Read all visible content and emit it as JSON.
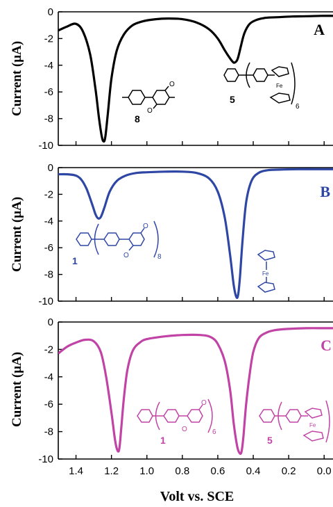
{
  "colors": {
    "A": "#000000",
    "B": "#2e46a4",
    "C": "#c043a5",
    "axis": "#000000"
  },
  "figure": {
    "xlabel": "Volt vs. SCE"
  },
  "chart_data": [
    {
      "type": "line",
      "panel_label": "A",
      "ylabel": "Current (μA)",
      "xlabel": "",
      "xlim": [
        1.5,
        -0.05
      ],
      "ylim": [
        -10,
        0
      ],
      "x_ticks": [
        "1.4",
        "1.2",
        "1.0",
        "0.8",
        "0.6",
        "0.4",
        "0.2",
        "0.0"
      ],
      "x_tick_values": [
        1.4,
        1.2,
        1.0,
        0.8,
        0.6,
        0.4,
        0.2,
        0.0
      ],
      "y_ticks": [
        "0",
        "-2",
        "-4",
        "-6",
        "-8",
        "-10"
      ],
      "y_tick_values": [
        0,
        -2,
        -4,
        -6,
        -8,
        -10
      ],
      "x": [
        1.5,
        1.45,
        1.4,
        1.36,
        1.32,
        1.29,
        1.27,
        1.255,
        1.245,
        1.235,
        1.22,
        1.2,
        1.17,
        1.13,
        1.08,
        1.02,
        0.95,
        0.88,
        0.8,
        0.72,
        0.65,
        0.6,
        0.56,
        0.53,
        0.51,
        0.495,
        0.485,
        0.47,
        0.45,
        0.42,
        0.38,
        0.33,
        0.26,
        0.18,
        0.1,
        0.02,
        -0.05
      ],
      "y": [
        -1.4,
        -1.1,
        -0.9,
        -1.5,
        -3.2,
        -5.8,
        -8.0,
        -9.3,
        -9.7,
        -9.4,
        -7.6,
        -5.0,
        -2.9,
        -1.7,
        -1.0,
        -0.7,
        -0.55,
        -0.5,
        -0.55,
        -0.8,
        -1.3,
        -2.0,
        -2.9,
        -3.5,
        -3.8,
        -3.7,
        -3.4,
        -2.6,
        -1.6,
        -0.9,
        -0.6,
        -0.45,
        -0.4,
        -0.35,
        -0.33,
        -0.3,
        -0.3
      ],
      "compounds": [
        "8",
        "5"
      ],
      "annotations": [
        "Fe",
        "6"
      ]
    },
    {
      "type": "line",
      "panel_label": "B",
      "ylabel": "Current (μA)",
      "xlabel": "",
      "xlim": [
        1.5,
        -0.05
      ],
      "ylim": [
        -10,
        0
      ],
      "x_ticks": [
        "1.4",
        "1.2",
        "1.0",
        "0.8",
        "0.6",
        "0.4",
        "0.2",
        "0.0"
      ],
      "x_tick_values": [
        1.4,
        1.2,
        1.0,
        0.8,
        0.6,
        0.4,
        0.2,
        0.0
      ],
      "y_ticks": [
        "0",
        "-2",
        "-4",
        "-6",
        "-8",
        "-10"
      ],
      "y_tick_values": [
        0,
        -2,
        -4,
        -6,
        -8,
        -10
      ],
      "x": [
        1.5,
        1.45,
        1.4,
        1.37,
        1.34,
        1.31,
        1.29,
        1.275,
        1.26,
        1.24,
        1.21,
        1.17,
        1.12,
        1.06,
        1.0,
        0.9,
        0.8,
        0.72,
        0.65,
        0.6,
        0.56,
        0.53,
        0.51,
        0.495,
        0.485,
        0.475,
        0.46,
        0.44,
        0.41,
        0.37,
        0.32,
        0.25,
        0.15,
        0.05,
        -0.05
      ],
      "y": [
        -0.5,
        -0.5,
        -0.6,
        -0.9,
        -1.6,
        -2.7,
        -3.5,
        -3.8,
        -3.7,
        -3.0,
        -1.8,
        -1.0,
        -0.6,
        -0.4,
        -0.35,
        -0.3,
        -0.3,
        -0.4,
        -0.8,
        -1.8,
        -3.8,
        -6.6,
        -8.8,
        -9.7,
        -9.5,
        -8.2,
        -5.4,
        -2.6,
        -1.0,
        -0.4,
        -0.2,
        -0.15,
        -0.12,
        -0.12,
        -0.12
      ],
      "compounds": [
        "1"
      ],
      "annotations": [
        "8",
        "Fe"
      ]
    },
    {
      "type": "line",
      "panel_label": "C",
      "ylabel": "Current (μA)",
      "xlabel": "Volt vs. SCE",
      "xlim": [
        1.5,
        -0.05
      ],
      "ylim": [
        -10,
        0
      ],
      "x_ticks": [
        "1.4",
        "1.2",
        "1.0",
        "0.8",
        "0.6",
        "0.4",
        "0.2",
        "0.0"
      ],
      "x_tick_values": [
        1.4,
        1.2,
        1.0,
        0.8,
        0.6,
        0.4,
        0.2,
        0.0
      ],
      "y_ticks": [
        "0",
        "-2",
        "-4",
        "-6",
        "-8",
        "-10"
      ],
      "y_tick_values": [
        0,
        -2,
        -4,
        -6,
        -8,
        -10
      ],
      "x": [
        1.5,
        1.45,
        1.4,
        1.35,
        1.3,
        1.26,
        1.23,
        1.2,
        1.18,
        1.165,
        1.155,
        1.145,
        1.13,
        1.11,
        1.08,
        1.04,
        1.0,
        0.9,
        0.8,
        0.7,
        0.64,
        0.6,
        0.56,
        0.53,
        0.51,
        0.49,
        0.475,
        0.465,
        0.455,
        0.44,
        0.42,
        0.4,
        0.37,
        0.33,
        0.28,
        0.2,
        0.1,
        0.0,
        -0.05
      ],
      "y": [
        -2.3,
        -1.8,
        -1.5,
        -1.3,
        -1.4,
        -2.2,
        -4.0,
        -6.6,
        -8.6,
        -9.4,
        -9.2,
        -7.8,
        -5.6,
        -3.5,
        -2.1,
        -1.5,
        -1.25,
        -1.05,
        -0.95,
        -0.95,
        -1.1,
        -1.6,
        -2.9,
        -5.0,
        -7.4,
        -9.1,
        -9.6,
        -9.4,
        -8.3,
        -6.0,
        -3.8,
        -2.2,
        -1.2,
        -0.8,
        -0.6,
        -0.5,
        -0.45,
        -0.45,
        -0.45
      ],
      "compounds": [
        "1",
        "5"
      ],
      "annotations": [
        "6",
        "Fe"
      ]
    }
  ]
}
